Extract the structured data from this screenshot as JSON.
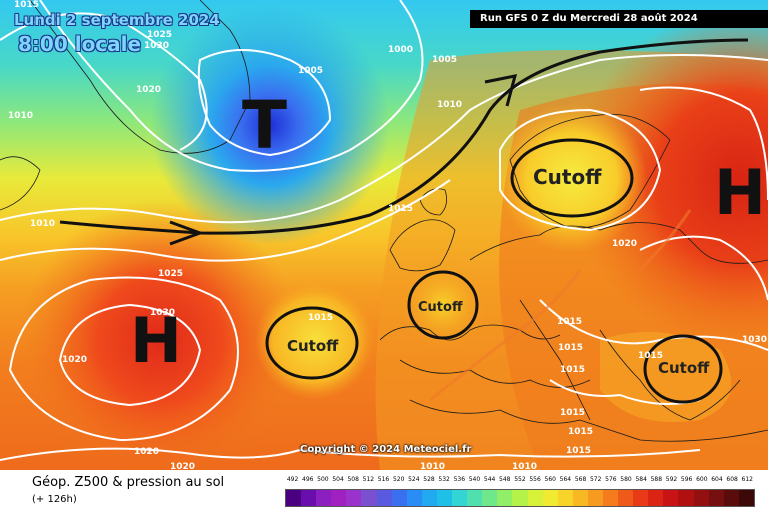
{
  "header": {
    "date": "Lundi 2 septembre 2024",
    "time": "8:00 locale",
    "run": "Run GFS 0 Z du Mercredi 28 août 2024"
  },
  "footer": {
    "product": "Géop. Z500 & pression au sol",
    "lead": "(+ 126h)",
    "copyright": "Copyright © 2024 Meteociel.fr"
  },
  "systems": {
    "low": "T",
    "high_west": "H",
    "high_east": "H",
    "cutoff_north": "Cutoff",
    "cutoff_west": "Cutoff",
    "cutoff_france": "Cutoff",
    "cutoff_balkans": "Cutoff"
  },
  "isobars": [
    "1015",
    "1025",
    "1030",
    "1010",
    "1020",
    "1000",
    "1005",
    "1010",
    "1005",
    "1010",
    "1025",
    "1030",
    "1020",
    "1015",
    "1015",
    "1020",
    "1015",
    "1015",
    "1015",
    "1015",
    "1015",
    "1015",
    "1020",
    "1020",
    "1010",
    "1010",
    "1015",
    "1030"
  ],
  "legend_values": [
    "492",
    "496",
    "500",
    "504",
    "508",
    "512",
    "516",
    "520",
    "524",
    "528",
    "532",
    "536",
    "540",
    "544",
    "548",
    "552",
    "556",
    "560",
    "564",
    "568",
    "572",
    "576",
    "580",
    "584",
    "588",
    "592",
    "596",
    "600",
    "604",
    "608",
    "612"
  ],
  "legend_colors": [
    "#4b0082",
    "#6a0dad",
    "#8b1fbf",
    "#a020c0",
    "#9933cc",
    "#7a4fd0",
    "#5a5ae0",
    "#3a6ff0",
    "#2a8cf5",
    "#22aaf0",
    "#1ec0e8",
    "#33d4d4",
    "#4fe0b0",
    "#6ee88a",
    "#90ef66",
    "#b4f24a",
    "#d8f23a",
    "#f0ea30",
    "#f8d42a",
    "#f8b824",
    "#f69a20",
    "#f47c1c",
    "#f05a18",
    "#e83a16",
    "#dc2414",
    "#c81414",
    "#b01010",
    "#941010",
    "#761010",
    "#5a0c0c",
    "#3c0808"
  ]
}
